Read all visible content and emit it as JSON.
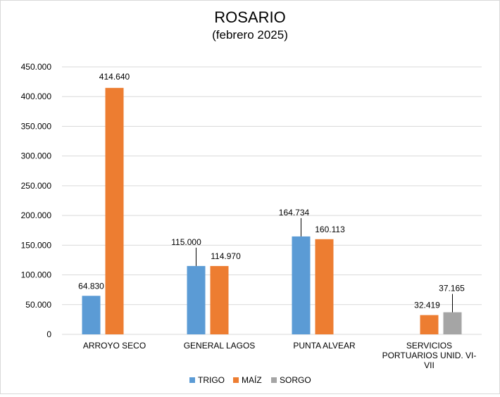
{
  "chart_data": {
    "type": "bar",
    "title": "ROSARIO",
    "subtitle": "(febrero 2025)",
    "xlabel": "",
    "ylabel": "",
    "ylim": [
      0,
      450000
    ],
    "yticks": [
      0,
      50000,
      100000,
      150000,
      200000,
      250000,
      300000,
      350000,
      400000,
      450000
    ],
    "ytick_labels": [
      "0",
      "50.000",
      "100.000",
      "150.000",
      "200.000",
      "250.000",
      "300.000",
      "350.000",
      "400.000",
      "450.000"
    ],
    "grid": true,
    "legend_position": "bottom",
    "categories": [
      [
        "ARROYO SECO"
      ],
      [
        "GENERAL LAGOS"
      ],
      [
        "PUNTA ALVEAR"
      ],
      [
        "SERVICIOS",
        "PORTUARIOS UNID. VI-",
        "VII"
      ]
    ],
    "series": [
      {
        "name": "TRIGO",
        "color": "#5b9bd5",
        "values": [
          64830,
          115000,
          164734,
          null
        ],
        "labels": [
          "64.830",
          "115.000",
          "164.734",
          ""
        ]
      },
      {
        "name": "MAÍZ",
        "color": "#ed7d31",
        "values": [
          414640,
          114970,
          160113,
          32419
        ],
        "labels": [
          "414.640",
          "114.970",
          "160.113",
          "32.419"
        ]
      },
      {
        "name": "SORGO",
        "color": "#a5a5a5",
        "values": [
          null,
          null,
          null,
          37165
        ],
        "labels": [
          "",
          "",
          "",
          "37.165"
        ]
      }
    ]
  }
}
